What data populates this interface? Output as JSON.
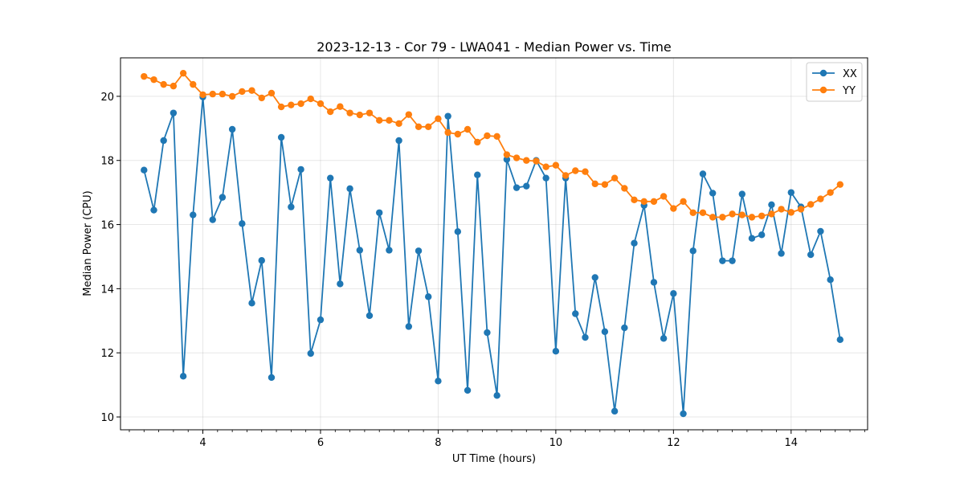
{
  "chart_data": {
    "type": "line",
    "title": "2023-12-13 - Cor 79 - LWA041 - Median Power vs. Time",
    "xlabel": "UT Time (hours)",
    "ylabel": "Median Power (CPU)",
    "xlim": [
      2.6,
      15.3
    ],
    "ylim": [
      9.6,
      21.2
    ],
    "xticks": [
      4,
      6,
      8,
      10,
      12,
      14
    ],
    "xtick_labels": [
      "4",
      "6",
      "8",
      "10",
      "12",
      "14"
    ],
    "yticks": [
      10,
      12,
      14,
      16,
      18,
      20
    ],
    "ytick_labels": [
      "10",
      "12",
      "14",
      "16",
      "18",
      "20"
    ],
    "grid": true,
    "legend_position": "top-right",
    "x": [
      3.0,
      3.167,
      3.333,
      3.5,
      3.667,
      3.833,
      4.0,
      4.167,
      4.333,
      4.5,
      4.667,
      4.833,
      5.0,
      5.167,
      5.333,
      5.5,
      5.667,
      5.833,
      6.0,
      6.167,
      6.333,
      6.5,
      6.667,
      6.833,
      7.0,
      7.167,
      7.333,
      7.5,
      7.667,
      7.833,
      8.0,
      8.167,
      8.333,
      8.5,
      8.667,
      8.833,
      9.0,
      9.167,
      9.333,
      9.5,
      9.667,
      9.833,
      10.0,
      10.167,
      10.333,
      10.5,
      10.667,
      10.833,
      11.0,
      11.167,
      11.333,
      11.5,
      11.667,
      11.833,
      12.0,
      12.167,
      12.333,
      12.5,
      12.667,
      12.833,
      13.0,
      13.167,
      13.333,
      13.5,
      13.667,
      13.833,
      14.0,
      14.167,
      14.333,
      14.5,
      14.667,
      14.833
    ],
    "series": [
      {
        "name": "XX",
        "color": "#1f77b4",
        "values": [
          17.7,
          16.45,
          18.62,
          19.48,
          11.27,
          16.3,
          19.98,
          16.15,
          16.85,
          18.97,
          16.03,
          13.55,
          14.88,
          11.23,
          18.72,
          16.55,
          17.72,
          11.98,
          13.03,
          17.45,
          14.15,
          17.12,
          15.2,
          13.16,
          16.37,
          15.2,
          18.62,
          12.82,
          15.18,
          13.75,
          11.12,
          19.38,
          15.78,
          10.83,
          17.55,
          12.63,
          10.67,
          18.03,
          17.15,
          17.2,
          18.0,
          17.45,
          12.05,
          17.45,
          13.22,
          12.48,
          14.35,
          12.66,
          10.18,
          12.78,
          15.42,
          16.6,
          14.2,
          12.45,
          13.85,
          10.1,
          15.18,
          17.58,
          16.98,
          14.87,
          14.87,
          16.95,
          15.57,
          15.68,
          16.62,
          15.1,
          17.0,
          16.55,
          15.06,
          15.79,
          14.28,
          12.41
        ]
      },
      {
        "name": "YY",
        "color": "#ff7f0e",
        "values": [
          20.62,
          20.52,
          20.37,
          20.32,
          20.72,
          20.37,
          20.05,
          20.07,
          20.07,
          20.0,
          20.15,
          20.18,
          19.95,
          20.1,
          19.67,
          19.73,
          19.77,
          19.92,
          19.77,
          19.52,
          19.68,
          19.48,
          19.42,
          19.48,
          19.25,
          19.25,
          19.15,
          19.43,
          19.05,
          19.05,
          19.3,
          18.87,
          18.82,
          18.97,
          18.57,
          18.77,
          18.75,
          18.18,
          18.08,
          18.0,
          17.98,
          17.8,
          17.85,
          17.53,
          17.68,
          17.65,
          17.27,
          17.25,
          17.45,
          17.13,
          16.77,
          16.72,
          16.72,
          16.88,
          16.5,
          16.72,
          16.37,
          16.37,
          16.23,
          16.23,
          16.33,
          16.3,
          16.23,
          16.27,
          16.33,
          16.48,
          16.38,
          16.48,
          16.63,
          16.8,
          17.0,
          17.25
        ]
      }
    ]
  }
}
